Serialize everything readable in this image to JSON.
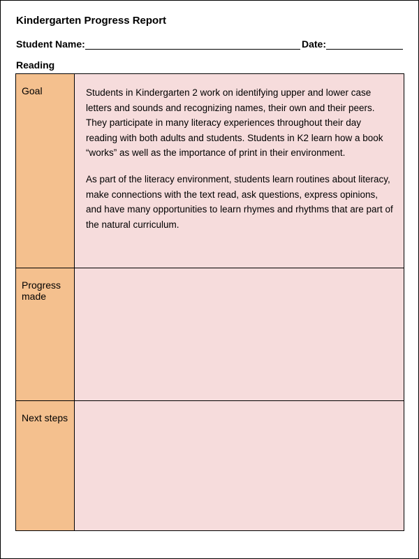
{
  "title": "Kindergarten Progress Report",
  "labels": {
    "studentName": "Student Name:",
    "date": "Date:",
    "subject": "Reading"
  },
  "rows": {
    "goal": {
      "label": "Goal",
      "p1": "Students in Kindergarten 2 work on identifying upper and lower case letters and sounds and recognizing names, their own and their peers. They participate in many literacy experiences throughout their day reading with both adults and students.  Students in K2 learn how a book “works” as well as the importance of print in their environment.",
      "p2": "As part of the literacy environment, students learn routines about literacy, make connections with the text read, ask questions, express opinions, and have many opportunities to learn rhymes and rhythms that are part of the natural curriculum."
    },
    "progress": {
      "label": "Progress made",
      "content": ""
    },
    "next": {
      "label": "Next steps",
      "content": ""
    }
  },
  "colors": {
    "labelCell": "#f4c08e",
    "contentCell": "#f6dcdc",
    "border": "#000000",
    "background": "#ffffff",
    "text": "#000000"
  }
}
